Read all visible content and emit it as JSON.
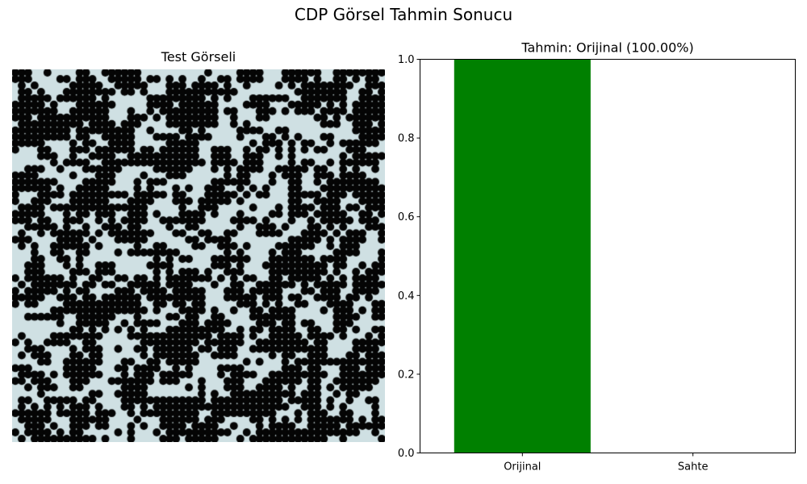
{
  "figure": {
    "title": "CDP Görsel Tahmin Sonucu"
  },
  "image_panel": {
    "title": "Test Görseli"
  },
  "chart_data": {
    "type": "bar",
    "title": "Tahmin: Orijinal (100.00%)",
    "categories": [
      "Orijinal",
      "Sahte"
    ],
    "values": [
      1.0,
      0.0
    ],
    "colors": [
      "#008000",
      "#ff0000"
    ],
    "ylim": [
      0,
      1
    ],
    "yticks": [
      "0.0",
      "0.2",
      "0.4",
      "0.6",
      "0.8",
      "1.0"
    ],
    "xlabel": "",
    "ylabel": "",
    "grid": false
  }
}
